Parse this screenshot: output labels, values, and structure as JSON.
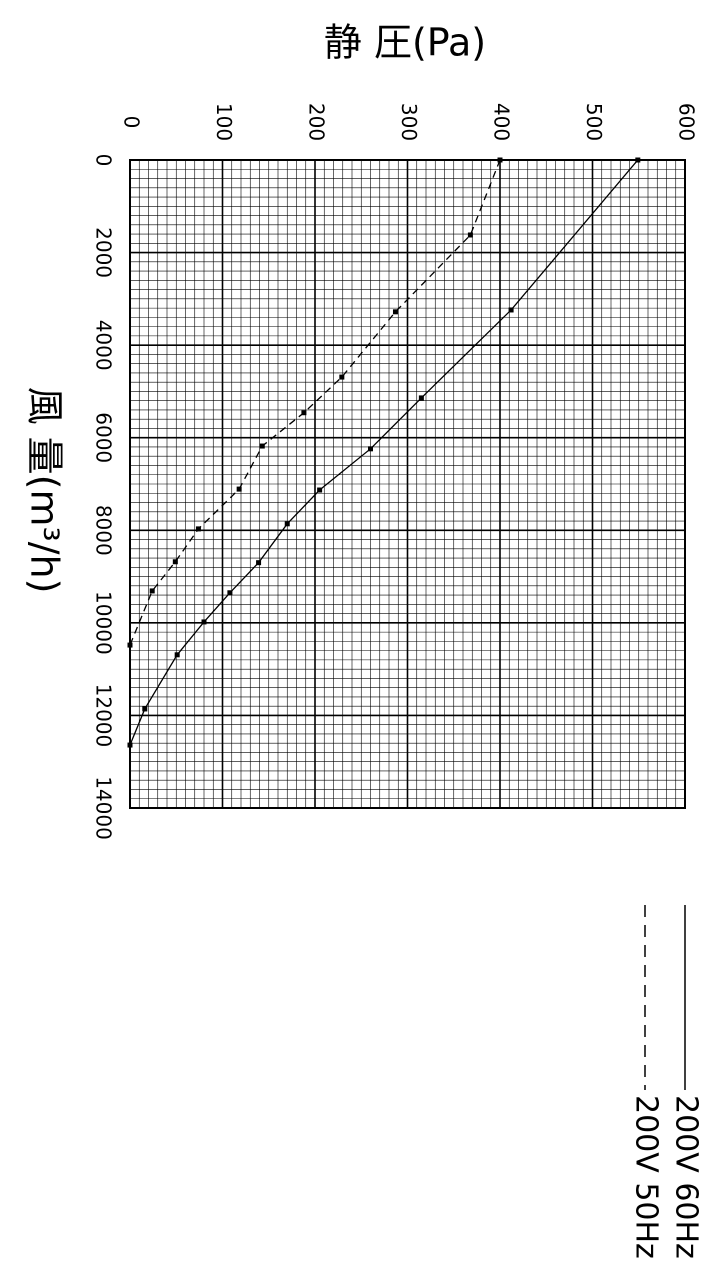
{
  "chart_data": {
    "type": "line",
    "title": "静 圧(Pa)",
    "x_label": "風 量(m³/h)",
    "xlim": [
      0,
      14000
    ],
    "xticks": [
      0,
      2000,
      4000,
      6000,
      8000,
      10000,
      12000,
      14000
    ],
    "ylim": [
      0,
      600
    ],
    "yticks": [
      0,
      100,
      200,
      300,
      400,
      500,
      600
    ],
    "grid": true,
    "series": [
      {
        "name": "200V 60Hz",
        "color": "#000000",
        "style": "solid",
        "x": [
          0,
          3240,
          5140,
          6240,
          7130,
          7860,
          8700,
          9350,
          9980,
          10690,
          11860,
          12640
        ],
        "values": [
          549,
          412,
          315,
          260,
          205,
          170,
          139,
          108,
          80,
          51,
          16,
          0
        ]
      },
      {
        "name": "200V 50Hz",
        "color": "#000000",
        "style": "dashed",
        "x": [
          0,
          1620,
          3280,
          4690,
          5460,
          6180,
          7110,
          7970,
          8680,
          9310,
          10480
        ],
        "values": [
          400,
          368,
          287,
          229,
          188,
          143,
          118,
          74,
          49,
          24,
          0
        ]
      }
    ]
  }
}
